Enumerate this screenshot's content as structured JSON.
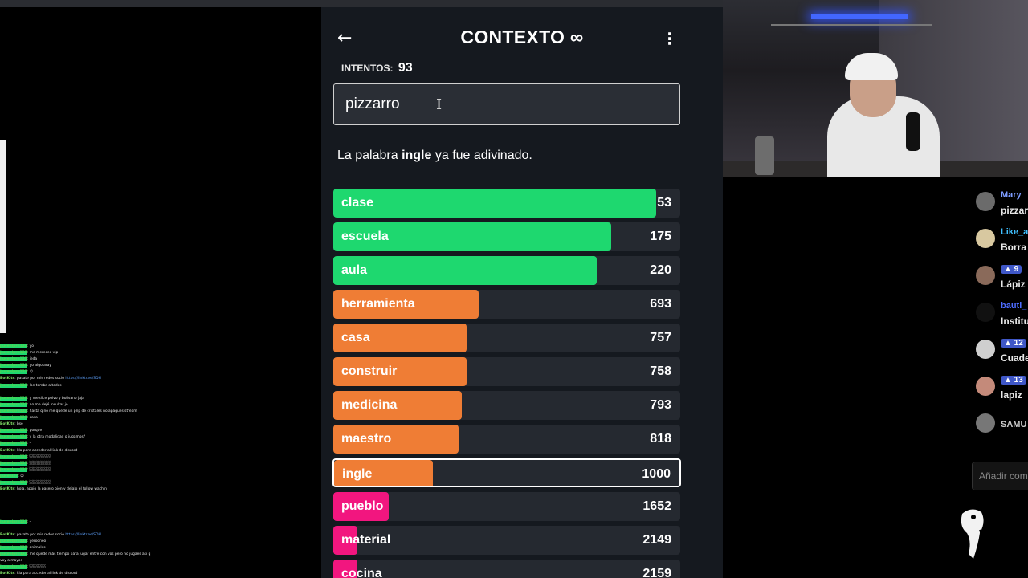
{
  "game": {
    "title": "CONTEXTO ∞",
    "back_icon": "←",
    "menu_icon": "⋮",
    "attempts_label": "INTENTOS:",
    "attempts_value": "93",
    "input_value": "pizzarro",
    "message_prefix": "La palabra ",
    "message_word": "ingle",
    "message_suffix": " ya fue adivinado.",
    "guesses": [
      {
        "word": "clase",
        "rank": "53",
        "fill": 0.93,
        "color": "green",
        "current": false
      },
      {
        "word": "escuela",
        "rank": "175",
        "fill": 0.8,
        "color": "green",
        "current": false
      },
      {
        "word": "aula",
        "rank": "220",
        "fill": 0.76,
        "color": "green",
        "current": false
      },
      {
        "word": "herramienta",
        "rank": "693",
        "fill": 0.42,
        "color": "orange",
        "current": false
      },
      {
        "word": "casa",
        "rank": "757",
        "fill": 0.385,
        "color": "orange",
        "current": false
      },
      {
        "word": "construir",
        "rank": "758",
        "fill": 0.385,
        "color": "orange",
        "current": false
      },
      {
        "word": "medicina",
        "rank": "793",
        "fill": 0.37,
        "color": "orange",
        "current": false
      },
      {
        "word": "maestro",
        "rank": "818",
        "fill": 0.36,
        "color": "orange",
        "current": false
      },
      {
        "word": "ingle",
        "rank": "1000",
        "fill": 0.285,
        "color": "orange",
        "current": true
      },
      {
        "word": "pueblo",
        "rank": "1652",
        "fill": 0.16,
        "color": "pink",
        "current": false
      },
      {
        "word": "material",
        "rank": "2149",
        "fill": 0.07,
        "color": "pink",
        "current": false
      },
      {
        "word": "cocina",
        "rank": "2159",
        "fill": 0.07,
        "color": "pink",
        "current": false
      }
    ]
  },
  "left_chat": [
    {
      "user": "jiuceelprn123",
      "text": ": yo",
      "cls": "green"
    },
    {
      "user": "jiuceelprn123",
      "text": ": me mereceo vip",
      "cls": "green"
    },
    {
      "user": "jiuceelprn123",
      "text": ": jeda",
      "cls": "green"
    },
    {
      "user": "jiuceelprn123",
      "text": ": yo algo aray",
      "cls": "green"
    },
    {
      "user": "jiuceelprn123",
      "text": ": ☺",
      "cls": "green"
    },
    {
      "user": "BotKits",
      "text": ": pasate por mis redes socio ",
      "link": "https://linktr.ee/SDH",
      "cls": "lime"
    },
    {
      "user": "jiuceelprn123",
      "text": ": lan tomba a todos",
      "cls": "green"
    },
    {
      "user": "",
      "text": "",
      "cls": "red"
    },
    {
      "user": "jiuceelprn123",
      "text": ": y me dice polvo y bolivano jaja",
      "cls": "green"
    },
    {
      "user": "jiuceelprn123",
      "text": ": no me dejé insultar jo",
      "cls": "green"
    },
    {
      "user": "jiuceelprn123",
      "text": ": hasta q no me quede un pnp de cristales no apagues stream",
      "cls": "green"
    },
    {
      "user": "jiuceelprn123",
      "text": ": casa",
      "cls": "green"
    },
    {
      "user": "BotKits",
      "text": ": bse",
      "cls": "lime"
    },
    {
      "user": "jiuceelprn122",
      "text": ": porque",
      "cls": "green"
    },
    {
      "user": "jiuceelprn123",
      "text": ": y la otra modalidad q jugamos?",
      "cls": "green"
    },
    {
      "user": "jiuceelprn123",
      "text": ": -",
      "cls": "green"
    },
    {
      "user": "BotKits",
      "text": ": kla para acceder al link de discord",
      "cls": "lime"
    },
    {
      "user": "jiuceelprn123",
      "text": ": ░░░░░░░░",
      "cls": "green"
    },
    {
      "user": "jiuceelprn123",
      "text": ": ░░░░░░░░",
      "cls": "green"
    },
    {
      "user": "jiuceelprn123",
      "text": ": ░░░░░░░░",
      "cls": "green"
    },
    {
      "user": "jiuceel27",
      "text": ": ☺",
      "cls": "green"
    },
    {
      "user": "jiuceelprn123",
      "text": ": ░░░░░░░░",
      "cls": "green"
    },
    {
      "user": "BotKits",
      "text": ": hola, apoio la pasero bien y dejalo el follow wachin",
      "cls": "lime"
    },
    {
      "user": "",
      "text": "",
      "cls": "red"
    },
    {
      "user": "",
      "text": "",
      "cls": "red"
    },
    {
      "user": "",
      "text": "",
      "cls": "red"
    },
    {
      "user": "",
      "text": "",
      "cls": "red"
    },
    {
      "user": "jiuceelprn123",
      "text": ": -",
      "cls": "green"
    },
    {
      "user": "",
      "text": "",
      "cls": "red"
    },
    {
      "user": "BotKits",
      "text": ": pasate por mis redes socio ",
      "link": "https://linktr.ee/SDH",
      "cls": "lime"
    },
    {
      "user": "jiuceelprn123",
      "text": ": yerooneo",
      "cls": "green"
    },
    {
      "user": "jiuceelprn123",
      "text": ": animales",
      "cls": "green"
    },
    {
      "user": "jiuceelprn123",
      "text": ": me quede más tiempo para jugar entre con vos pero no jugaes asi q",
      "cls": "green"
    },
    {
      "user": "",
      "text": "voy a mayor",
      "cls": "red"
    },
    {
      "user": "jiuceelprn123",
      "text": ": ░░░░░░",
      "cls": "green"
    },
    {
      "user": "BotKits",
      "text": ": kla para acceder al link de discord",
      "cls": "lime"
    }
  ],
  "right_chat": {
    "items": [
      {
        "name": "Mary",
        "name_color": "#7d9cff",
        "text": "pizzar",
        "badge": ""
      },
      {
        "name": "Like_a",
        "name_color": "#40c0ff",
        "text": "Borra",
        "badge": ""
      },
      {
        "name": "",
        "name_color": "#ffffff",
        "text": "Lápiz",
        "badge": "▲ 9"
      },
      {
        "name": "bauti_",
        "name_color": "#4d6cff",
        "text": "Institu",
        "badge": ""
      },
      {
        "name": "",
        "name_color": "#ffffff",
        "text": "Cuade",
        "badge": "▲ 12"
      },
      {
        "name": "",
        "name_color": "#ffffff",
        "text": "lapiz",
        "badge": "▲ 13"
      },
      {
        "name": "SAMU",
        "name_color": "#cccccc",
        "text": "",
        "badge": ""
      }
    ],
    "input_placeholder": "Añadir com"
  }
}
